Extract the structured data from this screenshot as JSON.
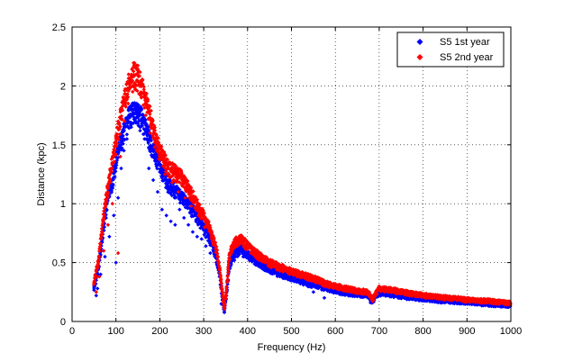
{
  "chart_data": {
    "type": "scatter",
    "title": "",
    "xlabel": "Frequency (Hz)",
    "ylabel": "Distance (kpc)",
    "xlim": [
      0,
      1000
    ],
    "ylim": [
      0,
      2.5
    ],
    "x_ticks": [
      0,
      100,
      200,
      300,
      400,
      500,
      600,
      700,
      800,
      900,
      1000
    ],
    "x_tick_labels": [
      "0",
      "100",
      "200",
      "300",
      "400",
      "500",
      "600",
      "700",
      "800",
      "900",
      "1000"
    ],
    "y_ticks": [
      0,
      0.5,
      1,
      1.5,
      2,
      2.5
    ],
    "y_tick_labels": [
      "0",
      "0.5",
      "1",
      "1.5",
      "2",
      "2.5"
    ],
    "grid": true,
    "grid_style": "dotted",
    "legend_position": "top-right",
    "series": [
      {
        "name": "S5 1st year",
        "color": "#0000ff",
        "marker": "diamond",
        "curve": [
          [
            50,
            0.3
          ],
          [
            60,
            0.48
          ],
          [
            70,
            0.8
          ],
          [
            80,
            1.05
          ],
          [
            90,
            1.22
          ],
          [
            100,
            1.42
          ],
          [
            110,
            1.58
          ],
          [
            120,
            1.72
          ],
          [
            130,
            1.82
          ],
          [
            140,
            1.88
          ],
          [
            150,
            1.86
          ],
          [
            160,
            1.8
          ],
          [
            170,
            1.7
          ],
          [
            180,
            1.58
          ],
          [
            190,
            1.48
          ],
          [
            200,
            1.4
          ],
          [
            210,
            1.3
          ],
          [
            220,
            1.22
          ],
          [
            230,
            1.18
          ],
          [
            240,
            1.15
          ],
          [
            250,
            1.1
          ],
          [
            260,
            1.07
          ],
          [
            270,
            1.02
          ],
          [
            280,
            0.96
          ],
          [
            290,
            0.9
          ],
          [
            300,
            0.84
          ],
          [
            310,
            0.77
          ],
          [
            320,
            0.68
          ],
          [
            330,
            0.55
          ],
          [
            337,
            0.4
          ],
          [
            343,
            0.2
          ],
          [
            347,
            0.1
          ],
          [
            352,
            0.25
          ],
          [
            358,
            0.5
          ],
          [
            365,
            0.58
          ],
          [
            375,
            0.62
          ],
          [
            385,
            0.65
          ],
          [
            395,
            0.62
          ],
          [
            410,
            0.57
          ],
          [
            430,
            0.52
          ],
          [
            450,
            0.47
          ],
          [
            475,
            0.43
          ],
          [
            500,
            0.4
          ],
          [
            525,
            0.36
          ],
          [
            550,
            0.33
          ],
          [
            575,
            0.31
          ],
          [
            600,
            0.28
          ],
          [
            625,
            0.26
          ],
          [
            650,
            0.25
          ],
          [
            675,
            0.24
          ],
          [
            685,
            0.18
          ],
          [
            690,
            0.22
          ],
          [
            700,
            0.26
          ],
          [
            725,
            0.25
          ],
          [
            750,
            0.23
          ],
          [
            800,
            0.21
          ],
          [
            850,
            0.19
          ],
          [
            900,
            0.18
          ],
          [
            950,
            0.16
          ],
          [
            1000,
            0.15
          ]
        ],
        "outliers": [
          [
            55,
            0.22
          ],
          [
            58,
            0.28
          ],
          [
            65,
            0.4
          ],
          [
            75,
            0.55
          ],
          [
            85,
            0.72
          ],
          [
            95,
            0.9
          ],
          [
            100,
            0.5
          ],
          [
            105,
            1.05
          ],
          [
            112,
            1.3
          ],
          [
            118,
            1.45
          ],
          [
            125,
            1.55
          ],
          [
            135,
            1.65
          ],
          [
            145,
            1.7
          ],
          [
            155,
            1.62
          ],
          [
            165,
            1.55
          ],
          [
            175,
            1.3
          ],
          [
            185,
            1.2
          ],
          [
            195,
            1.1
          ],
          [
            205,
            0.95
          ],
          [
            215,
            0.9
          ],
          [
            225,
            0.85
          ],
          [
            235,
            0.82
          ],
          [
            245,
            0.95
          ],
          [
            255,
            0.88
          ],
          [
            265,
            0.82
          ],
          [
            275,
            0.76
          ],
          [
            285,
            0.72
          ],
          [
            295,
            0.7
          ],
          [
            305,
            0.64
          ],
          [
            315,
            0.58
          ],
          [
            340,
            0.15
          ],
          [
            355,
            0.35
          ],
          [
            360,
            0.45
          ],
          [
            370,
            0.52
          ],
          [
            390,
            0.55
          ],
          [
            420,
            0.48
          ],
          [
            460,
            0.42
          ],
          [
            500,
            0.35
          ],
          [
            540,
            0.32
          ],
          [
            550,
            0.25
          ],
          [
            575,
            0.2
          ],
          [
            620,
            0.24
          ],
          [
            680,
            0.16
          ],
          [
            720,
            0.22
          ],
          [
            760,
            0.2
          ],
          [
            820,
            0.18
          ],
          [
            880,
            0.17
          ],
          [
            940,
            0.15
          ],
          [
            990,
            0.14
          ]
        ]
      },
      {
        "name": "S5 2nd year",
        "color": "#ff0000",
        "marker": "diamond",
        "curve": [
          [
            50,
            0.35
          ],
          [
            60,
            0.55
          ],
          [
            70,
            0.88
          ],
          [
            80,
            1.15
          ],
          [
            90,
            1.38
          ],
          [
            100,
            1.6
          ],
          [
            110,
            1.8
          ],
          [
            120,
            1.98
          ],
          [
            130,
            2.12
          ],
          [
            140,
            2.2
          ],
          [
            150,
            2.18
          ],
          [
            160,
            2.08
          ],
          [
            170,
            1.95
          ],
          [
            180,
            1.8
          ],
          [
            190,
            1.65
          ],
          [
            200,
            1.52
          ],
          [
            210,
            1.44
          ],
          [
            220,
            1.38
          ],
          [
            230,
            1.34
          ],
          [
            240,
            1.32
          ],
          [
            250,
            1.28
          ],
          [
            260,
            1.22
          ],
          [
            270,
            1.15
          ],
          [
            280,
            1.08
          ],
          [
            290,
            1.0
          ],
          [
            300,
            0.94
          ],
          [
            310,
            0.86
          ],
          [
            320,
            0.76
          ],
          [
            330,
            0.62
          ],
          [
            337,
            0.45
          ],
          [
            343,
            0.25
          ],
          [
            347,
            0.12
          ],
          [
            352,
            0.3
          ],
          [
            358,
            0.58
          ],
          [
            365,
            0.68
          ],
          [
            375,
            0.72
          ],
          [
            385,
            0.74
          ],
          [
            395,
            0.7
          ],
          [
            410,
            0.64
          ],
          [
            430,
            0.58
          ],
          [
            450,
            0.53
          ],
          [
            475,
            0.49
          ],
          [
            500,
            0.45
          ],
          [
            525,
            0.42
          ],
          [
            550,
            0.39
          ],
          [
            575,
            0.35
          ],
          [
            600,
            0.32
          ],
          [
            625,
            0.3
          ],
          [
            650,
            0.28
          ],
          [
            675,
            0.27
          ],
          [
            685,
            0.2
          ],
          [
            690,
            0.25
          ],
          [
            700,
            0.3
          ],
          [
            725,
            0.29
          ],
          [
            750,
            0.27
          ],
          [
            800,
            0.24
          ],
          [
            850,
            0.22
          ],
          [
            900,
            0.2
          ],
          [
            950,
            0.19
          ],
          [
            1000,
            0.17
          ]
        ],
        "outliers": [
          [
            55,
            0.25
          ],
          [
            62,
            0.38
          ],
          [
            72,
            0.6
          ],
          [
            82,
            0.82
          ],
          [
            92,
            1.0
          ],
          [
            105,
            0.58
          ],
          [
            110,
            1.4
          ],
          [
            120,
            1.7
          ],
          [
            128,
            1.85
          ],
          [
            138,
            1.95
          ],
          [
            148,
            2.05
          ],
          [
            158,
            1.9
          ],
          [
            168,
            1.75
          ],
          [
            178,
            1.6
          ],
          [
            188,
            1.48
          ],
          [
            198,
            1.38
          ],
          [
            212,
            1.25
          ],
          [
            228,
            1.18
          ],
          [
            242,
            1.1
          ],
          [
            258,
            1.05
          ],
          [
            272,
            0.98
          ],
          [
            288,
            0.9
          ],
          [
            302,
            0.8
          ],
          [
            318,
            0.7
          ],
          [
            345,
            0.18
          ],
          [
            356,
            0.45
          ],
          [
            368,
            0.62
          ],
          [
            380,
            0.66
          ],
          [
            400,
            0.65
          ],
          [
            440,
            0.55
          ],
          [
            480,
            0.46
          ],
          [
            520,
            0.4
          ],
          [
            560,
            0.36
          ],
          [
            600,
            0.3
          ],
          [
            640,
            0.27
          ],
          [
            690,
            0.21
          ],
          [
            710,
            0.28
          ],
          [
            760,
            0.26
          ],
          [
            820,
            0.23
          ],
          [
            880,
            0.21
          ],
          [
            940,
            0.19
          ],
          [
            995,
            0.17
          ]
        ]
      }
    ]
  }
}
